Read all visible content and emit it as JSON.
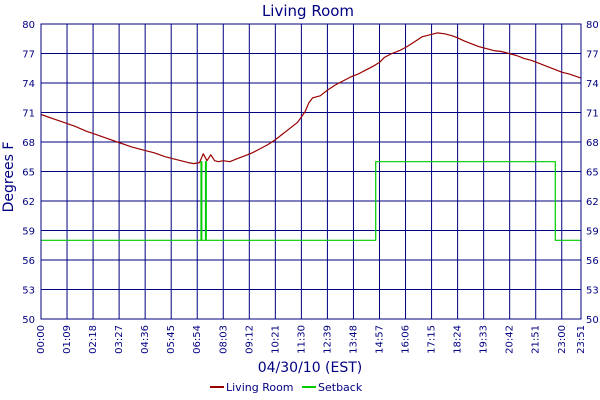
{
  "chart_data": {
    "type": "line",
    "title": "Living Room",
    "xlabel": "04/30/10 (EST)",
    "ylabel": "Degrees F",
    "ylim": [
      50,
      80
    ],
    "y_ticks": [
      50,
      53,
      56,
      59,
      62,
      65,
      68,
      71,
      74,
      77,
      80
    ],
    "y_tick_labels": [
      "50",
      "53",
      "56",
      "59",
      "62",
      "65",
      "68",
      "71",
      "74",
      "77",
      "80"
    ],
    "x_range_minutes": [
      0,
      1431
    ],
    "x_tick_labels": [
      "00:00",
      "01:09",
      "02:18",
      "03:27",
      "04:36",
      "05:45",
      "06:54",
      "08:03",
      "09:12",
      "10:21",
      "11:30",
      "12:39",
      "13:48",
      "14:57",
      "16:06",
      "17:15",
      "18:24",
      "19:33",
      "20:42",
      "21:51",
      "23:00",
      "23:51"
    ],
    "x_tick_minutes": [
      0,
      69,
      138,
      207,
      276,
      345,
      414,
      483,
      552,
      621,
      690,
      759,
      828,
      897,
      966,
      1035,
      1104,
      1173,
      1242,
      1311,
      1380,
      1431
    ],
    "grid": true,
    "legend_position": "bottom",
    "colors": {
      "axis": "#000080",
      "grid": "#000080"
    },
    "series": [
      {
        "name": "Living Room",
        "color": "#990000",
        "x": [
          0,
          30,
          60,
          90,
          120,
          150,
          180,
          210,
          240,
          270,
          300,
          330,
          360,
          390,
          405,
          420,
          430,
          440,
          450,
          460,
          470,
          483,
          500,
          520,
          540,
          560,
          580,
          600,
          620,
          640,
          660,
          680,
          700,
          710,
          720,
          730,
          740,
          750,
          760,
          780,
          800,
          820,
          840,
          860,
          880,
          897,
          910,
          930,
          950,
          970,
          990,
          1010,
          1030,
          1050,
          1070,
          1090,
          1104,
          1120,
          1140,
          1160,
          1180,
          1200,
          1220,
          1240,
          1260,
          1280,
          1300,
          1320,
          1340,
          1360,
          1380,
          1400,
          1431
        ],
        "y": [
          70.8,
          70.4,
          70.0,
          69.6,
          69.1,
          68.7,
          68.3,
          67.9,
          67.5,
          67.2,
          66.9,
          66.5,
          66.2,
          65.9,
          65.8,
          65.9,
          66.8,
          66.1,
          66.7,
          66.1,
          66.0,
          66.1,
          66.0,
          66.3,
          66.6,
          66.9,
          67.3,
          67.7,
          68.2,
          68.8,
          69.4,
          70.0,
          71.1,
          72.0,
          72.5,
          72.6,
          72.7,
          73.0,
          73.3,
          73.8,
          74.2,
          74.6,
          74.9,
          75.3,
          75.7,
          76.1,
          76.6,
          77.0,
          77.3,
          77.7,
          78.2,
          78.7,
          78.9,
          79.1,
          79.0,
          78.8,
          78.6,
          78.3,
          78.0,
          77.7,
          77.5,
          77.3,
          77.2,
          77.0,
          76.8,
          76.5,
          76.3,
          76.0,
          75.7,
          75.4,
          75.1,
          74.9,
          74.5
        ]
      },
      {
        "name": "Setback",
        "color": "#00cc00",
        "x": [
          0,
          424,
          424,
          426,
          426,
          436,
          436,
          438,
          438,
          887,
          887,
          1363,
          1363,
          1431
        ],
        "y": [
          58,
          58,
          66,
          66,
          58,
          58,
          66,
          66,
          58,
          58,
          66,
          66,
          58,
          58
        ]
      }
    ]
  }
}
